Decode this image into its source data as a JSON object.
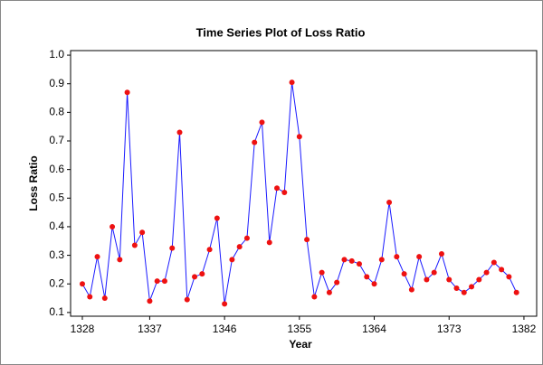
{
  "chart_data": {
    "type": "line",
    "title": "Time Series Plot of Loss Ratio",
    "x_label": "Year",
    "y_label": "Loss Ratio",
    "series": [
      {
        "name": "Loss Ratio",
        "color": "#1a1aff",
        "marker_color": "#ee1111",
        "values": [
          0.2,
          0.155,
          0.295,
          0.15,
          0.4,
          0.285,
          0.87,
          0.335,
          0.38,
          0.14,
          0.21,
          0.21,
          0.325,
          0.73,
          0.145,
          0.225,
          0.235,
          0.32,
          0.43,
          0.13,
          0.285,
          0.33,
          0.36,
          0.695,
          0.765,
          0.345,
          0.535,
          0.52,
          0.905,
          0.715,
          0.355,
          0.155,
          0.24,
          0.17,
          0.205,
          0.285,
          0.28,
          0.27,
          0.225,
          0.2,
          0.285,
          0.485,
          0.295,
          0.235,
          0.18,
          0.295,
          0.215,
          0.24,
          0.305,
          0.215,
          0.185,
          0.17,
          0.19,
          0.215,
          0.24,
          0.275,
          0.25,
          0.225,
          0.17
        ]
      }
    ],
    "xlim": [
      -1.57,
      60.7
    ],
    "xticks": [
      {
        "value": 0,
        "label": "1328"
      },
      {
        "value": 9,
        "label": "1337"
      },
      {
        "value": 19,
        "label": "1346"
      },
      {
        "value": 29,
        "label": "1355"
      },
      {
        "value": 39,
        "label": "1364"
      },
      {
        "value": 49,
        "label": "1373"
      },
      {
        "value": 59,
        "label": "1382"
      }
    ],
    "ylim": [
      0.087,
      1.016
    ],
    "yticks": [
      0.1,
      0.2,
      0.3,
      0.4,
      0.5,
      0.6,
      0.7,
      0.8,
      0.9,
      {
        "value": 1.0,
        "label": "1.0"
      }
    ]
  }
}
